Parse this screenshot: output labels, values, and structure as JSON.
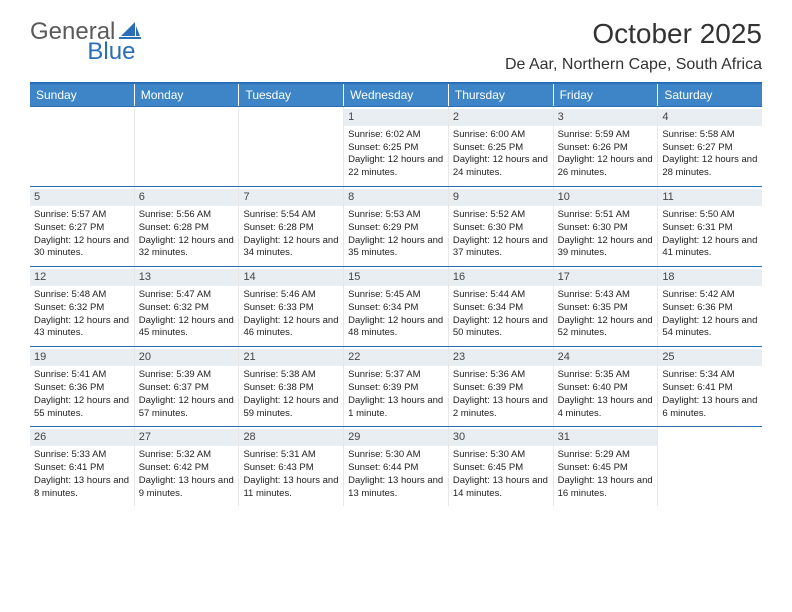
{
  "logo": {
    "general": "General",
    "blue": "Blue"
  },
  "title": "October 2025",
  "location": "De Aar, Northern Cape, South Africa",
  "colors": {
    "header_bar": "#3d85c6",
    "rule": "#2a6fb5",
    "daynum_bg": "#e9eef3",
    "text": "#222222",
    "logo_gray": "#5a5a5a",
    "logo_blue": "#2a6fb5"
  },
  "weekdays": [
    "Sunday",
    "Monday",
    "Tuesday",
    "Wednesday",
    "Thursday",
    "Friday",
    "Saturday"
  ],
  "weeks": [
    [
      {
        "n": "",
        "t": ""
      },
      {
        "n": "",
        "t": ""
      },
      {
        "n": "",
        "t": ""
      },
      {
        "n": "1",
        "t": "Sunrise: 6:02 AM\nSunset: 6:25 PM\nDaylight: 12 hours and 22 minutes."
      },
      {
        "n": "2",
        "t": "Sunrise: 6:00 AM\nSunset: 6:25 PM\nDaylight: 12 hours and 24 minutes."
      },
      {
        "n": "3",
        "t": "Sunrise: 5:59 AM\nSunset: 6:26 PM\nDaylight: 12 hours and 26 minutes."
      },
      {
        "n": "4",
        "t": "Sunrise: 5:58 AM\nSunset: 6:27 PM\nDaylight: 12 hours and 28 minutes."
      }
    ],
    [
      {
        "n": "5",
        "t": "Sunrise: 5:57 AM\nSunset: 6:27 PM\nDaylight: 12 hours and 30 minutes."
      },
      {
        "n": "6",
        "t": "Sunrise: 5:56 AM\nSunset: 6:28 PM\nDaylight: 12 hours and 32 minutes."
      },
      {
        "n": "7",
        "t": "Sunrise: 5:54 AM\nSunset: 6:28 PM\nDaylight: 12 hours and 34 minutes."
      },
      {
        "n": "8",
        "t": "Sunrise: 5:53 AM\nSunset: 6:29 PM\nDaylight: 12 hours and 35 minutes."
      },
      {
        "n": "9",
        "t": "Sunrise: 5:52 AM\nSunset: 6:30 PM\nDaylight: 12 hours and 37 minutes."
      },
      {
        "n": "10",
        "t": "Sunrise: 5:51 AM\nSunset: 6:30 PM\nDaylight: 12 hours and 39 minutes."
      },
      {
        "n": "11",
        "t": "Sunrise: 5:50 AM\nSunset: 6:31 PM\nDaylight: 12 hours and 41 minutes."
      }
    ],
    [
      {
        "n": "12",
        "t": "Sunrise: 5:48 AM\nSunset: 6:32 PM\nDaylight: 12 hours and 43 minutes."
      },
      {
        "n": "13",
        "t": "Sunrise: 5:47 AM\nSunset: 6:32 PM\nDaylight: 12 hours and 45 minutes."
      },
      {
        "n": "14",
        "t": "Sunrise: 5:46 AM\nSunset: 6:33 PM\nDaylight: 12 hours and 46 minutes."
      },
      {
        "n": "15",
        "t": "Sunrise: 5:45 AM\nSunset: 6:34 PM\nDaylight: 12 hours and 48 minutes."
      },
      {
        "n": "16",
        "t": "Sunrise: 5:44 AM\nSunset: 6:34 PM\nDaylight: 12 hours and 50 minutes."
      },
      {
        "n": "17",
        "t": "Sunrise: 5:43 AM\nSunset: 6:35 PM\nDaylight: 12 hours and 52 minutes."
      },
      {
        "n": "18",
        "t": "Sunrise: 5:42 AM\nSunset: 6:36 PM\nDaylight: 12 hours and 54 minutes."
      }
    ],
    [
      {
        "n": "19",
        "t": "Sunrise: 5:41 AM\nSunset: 6:36 PM\nDaylight: 12 hours and 55 minutes."
      },
      {
        "n": "20",
        "t": "Sunrise: 5:39 AM\nSunset: 6:37 PM\nDaylight: 12 hours and 57 minutes."
      },
      {
        "n": "21",
        "t": "Sunrise: 5:38 AM\nSunset: 6:38 PM\nDaylight: 12 hours and 59 minutes."
      },
      {
        "n": "22",
        "t": "Sunrise: 5:37 AM\nSunset: 6:39 PM\nDaylight: 13 hours and 1 minute."
      },
      {
        "n": "23",
        "t": "Sunrise: 5:36 AM\nSunset: 6:39 PM\nDaylight: 13 hours and 2 minutes."
      },
      {
        "n": "24",
        "t": "Sunrise: 5:35 AM\nSunset: 6:40 PM\nDaylight: 13 hours and 4 minutes."
      },
      {
        "n": "25",
        "t": "Sunrise: 5:34 AM\nSunset: 6:41 PM\nDaylight: 13 hours and 6 minutes."
      }
    ],
    [
      {
        "n": "26",
        "t": "Sunrise: 5:33 AM\nSunset: 6:41 PM\nDaylight: 13 hours and 8 minutes."
      },
      {
        "n": "27",
        "t": "Sunrise: 5:32 AM\nSunset: 6:42 PM\nDaylight: 13 hours and 9 minutes."
      },
      {
        "n": "28",
        "t": "Sunrise: 5:31 AM\nSunset: 6:43 PM\nDaylight: 13 hours and 11 minutes."
      },
      {
        "n": "29",
        "t": "Sunrise: 5:30 AM\nSunset: 6:44 PM\nDaylight: 13 hours and 13 minutes."
      },
      {
        "n": "30",
        "t": "Sunrise: 5:30 AM\nSunset: 6:45 PM\nDaylight: 13 hours and 14 minutes."
      },
      {
        "n": "31",
        "t": "Sunrise: 5:29 AM\nSunset: 6:45 PM\nDaylight: 13 hours and 16 minutes."
      },
      {
        "n": "",
        "t": ""
      }
    ]
  ]
}
